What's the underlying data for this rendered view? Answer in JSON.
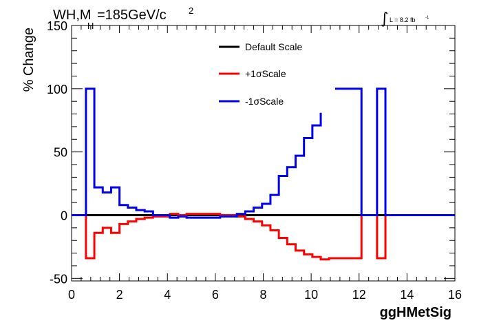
{
  "title": {
    "prefix": "WH,M",
    "subscript": "H",
    "suffix": "=185GeV/c",
    "superscript": "2"
  },
  "lumi": {
    "integral_symbol": "∫",
    "text": "L = 8.2 fb",
    "superscript": "-1"
  },
  "chart_data": {
    "type": "line",
    "xlabel": "ggHMetSig",
    "ylabel": "% Change",
    "xlim": [
      0,
      16
    ],
    "ylim": [
      -52,
      150
    ],
    "x_ticks": [
      "0",
      "2",
      "4",
      "6",
      "8",
      "10",
      "12",
      "14",
      "16"
    ],
    "y_ticks": [
      "-50",
      "0",
      "50",
      "100",
      "150"
    ],
    "legend_position": "top-center",
    "series": [
      {
        "name": "Default Scale",
        "color": "#000000",
        "step_points": [
          [
            0,
            0
          ],
          [
            16,
            0
          ]
        ]
      },
      {
        "name": "+1σScale",
        "color": "#ff0000",
        "step_points": [
          [
            0,
            0
          ],
          [
            0.6,
            0
          ],
          [
            0.6,
            -34
          ],
          [
            0.95,
            -34
          ],
          [
            0.95,
            -14
          ],
          [
            1.3,
            -14
          ],
          [
            1.3,
            -10
          ],
          [
            1.65,
            -10
          ],
          [
            1.65,
            -14
          ],
          [
            2.0,
            -14
          ],
          [
            2.0,
            -7
          ],
          [
            2.35,
            -7
          ],
          [
            2.35,
            -5
          ],
          [
            2.7,
            -5
          ],
          [
            2.7,
            -3
          ],
          [
            3.05,
            -3
          ],
          [
            3.05,
            -2
          ],
          [
            3.4,
            -2
          ],
          [
            3.4,
            -1
          ],
          [
            4.1,
            -1
          ],
          [
            4.1,
            1
          ],
          [
            4.45,
            1
          ],
          [
            4.45,
            0
          ],
          [
            4.8,
            0
          ],
          [
            4.8,
            1
          ],
          [
            6.2,
            1
          ],
          [
            6.2,
            0
          ],
          [
            6.9,
            0
          ],
          [
            6.9,
            -1
          ],
          [
            7.25,
            -1
          ],
          [
            7.25,
            -3
          ],
          [
            7.6,
            -3
          ],
          [
            7.6,
            -5
          ],
          [
            7.95,
            -5
          ],
          [
            7.95,
            -8
          ],
          [
            8.3,
            -8
          ],
          [
            8.3,
            -12
          ],
          [
            8.65,
            -12
          ],
          [
            8.65,
            -18
          ],
          [
            9.0,
            -18
          ],
          [
            9.0,
            -23
          ],
          [
            9.35,
            -23
          ],
          [
            9.35,
            -28
          ],
          [
            9.7,
            -28
          ],
          [
            9.7,
            -31
          ],
          [
            10.05,
            -31
          ],
          [
            10.05,
            -33
          ],
          [
            10.4,
            -33
          ],
          [
            10.4,
            -35
          ],
          [
            10.75,
            -35
          ],
          [
            10.75,
            -34
          ],
          [
            12.1,
            -34
          ],
          [
            12.1,
            0
          ],
          [
            12.75,
            0
          ],
          [
            12.75,
            -34
          ],
          [
            13.1,
            -34
          ],
          [
            13.1,
            0
          ],
          [
            16,
            0
          ]
        ]
      },
      {
        "name": "-1σScale",
        "color": "#0000ee",
        "step_points": [
          [
            0,
            0
          ],
          [
            0.6,
            0
          ],
          [
            0.6,
            100
          ],
          [
            0.95,
            100
          ],
          [
            0.95,
            22
          ],
          [
            1.3,
            22
          ],
          [
            1.3,
            18
          ],
          [
            1.65,
            18
          ],
          [
            1.65,
            22
          ],
          [
            2.0,
            22
          ],
          [
            2.0,
            8
          ],
          [
            2.35,
            8
          ],
          [
            2.35,
            6
          ],
          [
            2.7,
            6
          ],
          [
            2.7,
            4
          ],
          [
            3.05,
            4
          ],
          [
            3.05,
            3
          ],
          [
            3.4,
            3
          ],
          [
            3.4,
            0
          ],
          [
            4.1,
            0
          ],
          [
            4.1,
            -2
          ],
          [
            4.45,
            -2
          ],
          [
            4.45,
            -1
          ],
          [
            4.8,
            -1
          ],
          [
            4.8,
            -2
          ],
          [
            6.2,
            -2
          ],
          [
            6.2,
            -1
          ],
          [
            6.9,
            -1
          ],
          [
            6.9,
            1
          ],
          [
            7.25,
            1
          ],
          [
            7.25,
            3
          ],
          [
            7.6,
            3
          ],
          [
            7.6,
            6
          ],
          [
            7.95,
            6
          ],
          [
            7.95,
            9
          ],
          [
            8.3,
            9
          ],
          [
            8.3,
            16
          ],
          [
            8.65,
            16
          ],
          [
            8.65,
            31
          ],
          [
            9.0,
            31
          ],
          [
            9.0,
            38
          ],
          [
            9.35,
            38
          ],
          [
            9.35,
            47
          ],
          [
            9.7,
            47
          ],
          [
            9.7,
            61
          ],
          [
            10.05,
            61
          ],
          [
            10.05,
            71
          ],
          [
            10.4,
            71
          ],
          [
            10.4,
            81
          ]
        ],
        "extra_segments": [
          [
            [
              11.0,
              100
            ],
            [
              12.1,
              100
            ],
            [
              12.1,
              0
            ],
            [
              12.75,
              0
            ],
            [
              12.75,
              100
            ],
            [
              13.1,
              100
            ],
            [
              13.1,
              0
            ],
            [
              16,
              0
            ]
          ]
        ]
      }
    ]
  }
}
